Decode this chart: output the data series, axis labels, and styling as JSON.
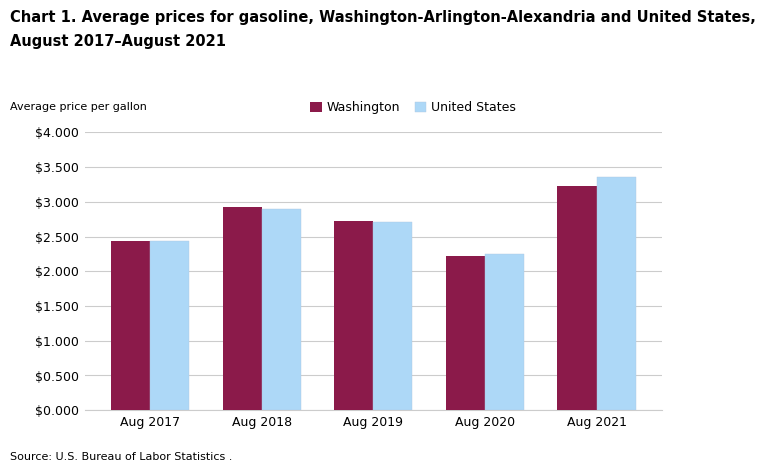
{
  "title_line1": "Chart 1. Average prices for gasoline, Washington-Arlington-Alexandria and United States,",
  "title_line2": "August 2017–August 2021",
  "ylabel": "Average price per gallon",
  "source": "Source: U.S. Bureau of Labor Statistics .",
  "categories": [
    "Aug 2017",
    "Aug 2018",
    "Aug 2019",
    "Aug 2020",
    "Aug 2021"
  ],
  "washington": [
    2.43,
    2.92,
    2.73,
    2.22,
    3.22
  ],
  "us": [
    2.44,
    2.9,
    2.71,
    2.25,
    3.36
  ],
  "washington_color": "#8B1A4A",
  "us_color": "#ADD8F7",
  "washington_label": "Washington",
  "us_label": "United States",
  "ylim": [
    0,
    4.0
  ],
  "yticks": [
    0.0,
    0.5,
    1.0,
    1.5,
    2.0,
    2.5,
    3.0,
    3.5,
    4.0
  ],
  "bar_width": 0.35,
  "background_color": "#ffffff",
  "grid_color": "#cccccc",
  "title_fontsize": 10.5,
  "label_fontsize": 8,
  "tick_fontsize": 9,
  "legend_fontsize": 9,
  "source_fontsize": 8
}
